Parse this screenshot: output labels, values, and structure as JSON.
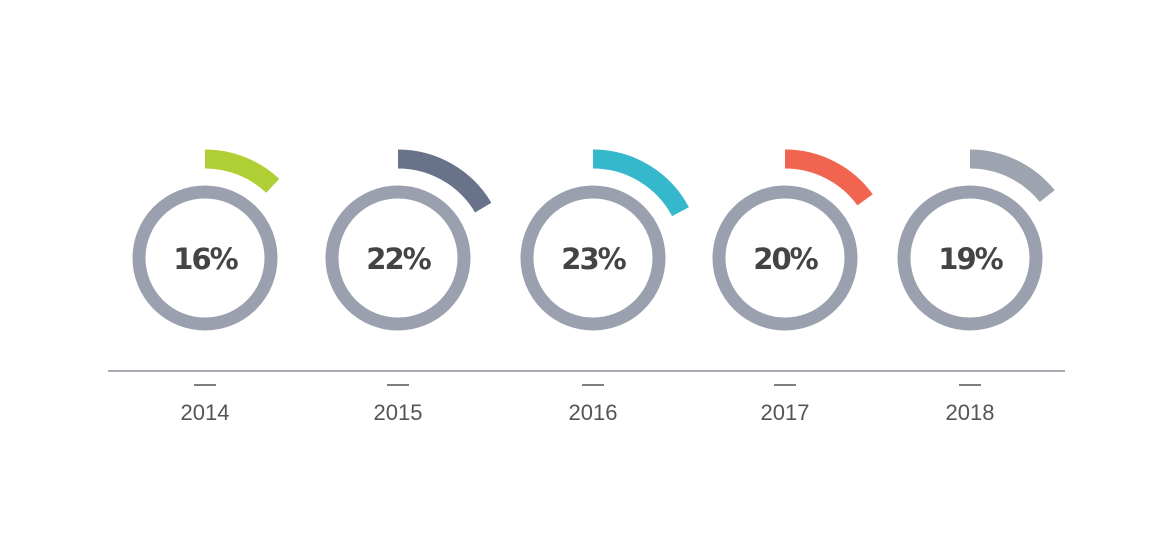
{
  "chart_data": {
    "type": "gauge",
    "categories": [
      "2014",
      "2015",
      "2016",
      "2017",
      "2018"
    ],
    "values": [
      16,
      22,
      23,
      20,
      19
    ],
    "value_labels": [
      "16%",
      "22%",
      "23%",
      "20%",
      "19%"
    ],
    "colors": [
      "#b0cf34",
      "#687389",
      "#35b8cb",
      "#f06450",
      "#9ea3b0"
    ]
  }
}
